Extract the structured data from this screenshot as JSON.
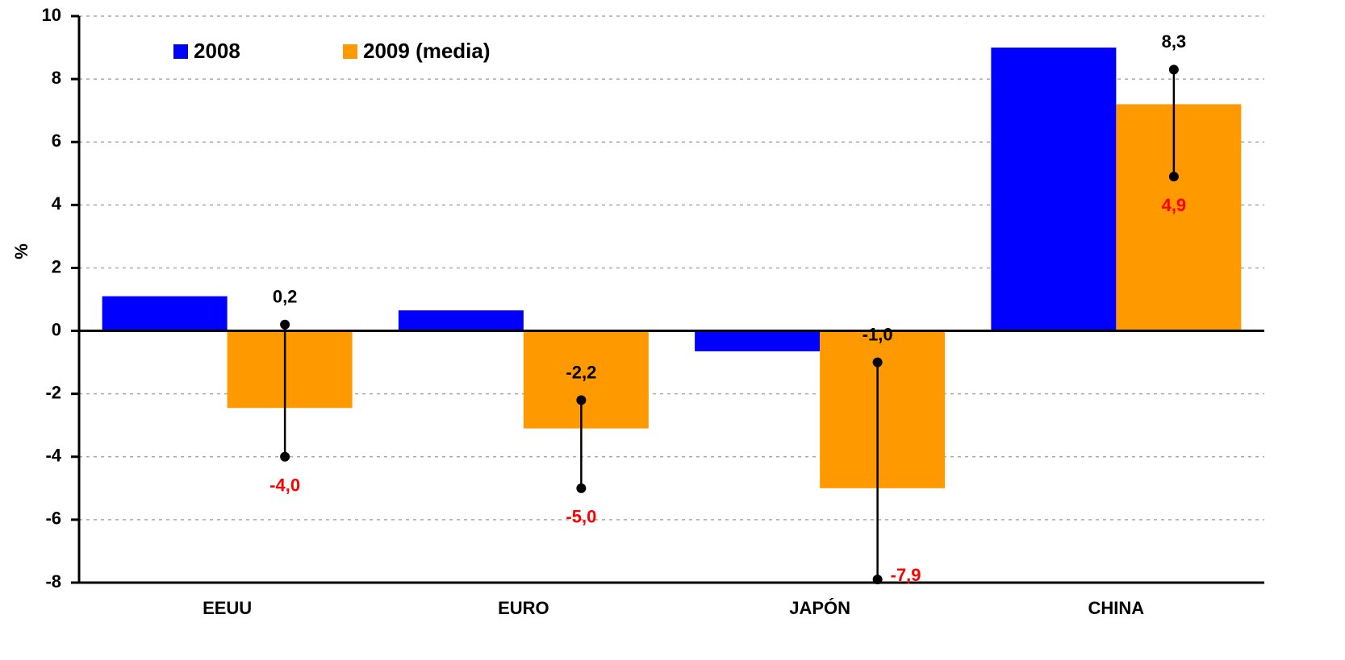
{
  "chart_data": {
    "type": "bar",
    "ylabel": "%",
    "categories": [
      "EEUU",
      "EURO",
      "JAPÓN",
      "CHINA"
    ],
    "series": [
      {
        "name": "2008",
        "color": "#0000ff",
        "values": [
          1.1,
          0.65,
          -0.65,
          9.0
        ]
      },
      {
        "name": "2009 (media)",
        "color": "#ff9900",
        "values": [
          -2.45,
          -3.1,
          -5.0,
          7.2
        ]
      }
    ],
    "range": {
      "high": [
        0.2,
        -2.2,
        -1.0,
        8.3
      ],
      "high_labels": [
        "0,2",
        "-2,2",
        "-1,0",
        "8,3"
      ],
      "high_color": "#000000",
      "low": [
        -4.0,
        -5.0,
        -7.9,
        4.9
      ],
      "low_labels": [
        "-4,0",
        "-5,0",
        "-7,9",
        "4,9"
      ],
      "low_color": "#ff0000"
    },
    "ylim": [
      -8,
      10
    ],
    "yticks": [
      -8,
      -6,
      -4,
      -2,
      0,
      2,
      4,
      6,
      8,
      10
    ],
    "grid": true,
    "legend": "top-left"
  }
}
